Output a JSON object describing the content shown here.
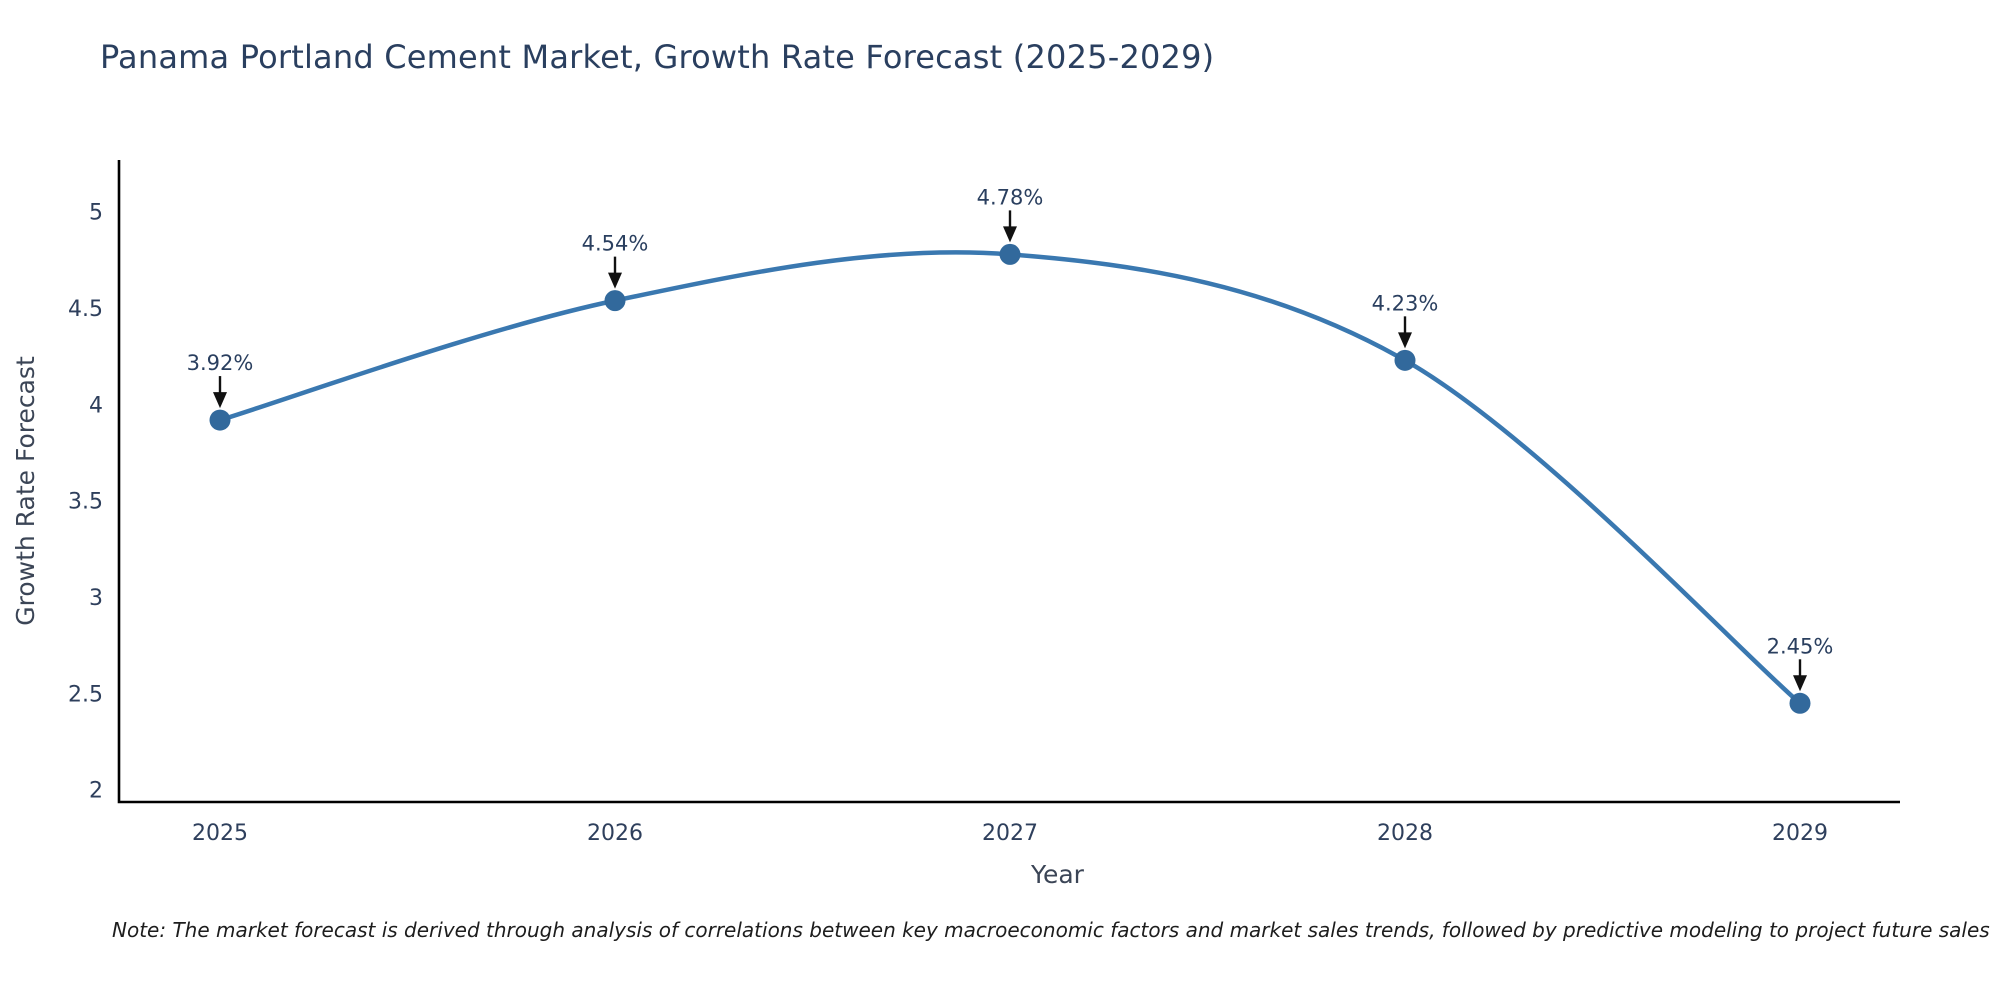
{
  "chart_data": {
    "type": "line",
    "title": "Panama Portland Cement Market, Growth Rate Forecast (2025-2029)",
    "x": [
      "2025",
      "2026",
      "2027",
      "2028",
      "2029"
    ],
    "values": [
      3.92,
      4.54,
      4.78,
      4.23,
      2.45
    ],
    "point_labels": [
      "3.92%",
      "4.54%",
      "4.78%",
      "4.23%",
      "2.45%"
    ],
    "xlabel": "Year",
    "ylabel": "Growth Rate Forecast",
    "ylim": [
      2,
      5
    ],
    "yticks": [
      2,
      2.5,
      3,
      3.5,
      4,
      4.5,
      5
    ],
    "grid": false,
    "legend": "none",
    "smooth": true,
    "colors": {
      "line": "#3a78b0",
      "marker": "#32699c",
      "axis": "#000000",
      "tick_text": "#2e3f5c",
      "axis_title_text": "#3b4556",
      "annotation_text": "#2a3f5f",
      "arrow": "#111111",
      "title_text": "#2a3f5f"
    },
    "note": "Note: The market forecast is derived through analysis of correlations between key macroeconomic factors and market sales trends, followed by predictive modeling to project future sales"
  }
}
